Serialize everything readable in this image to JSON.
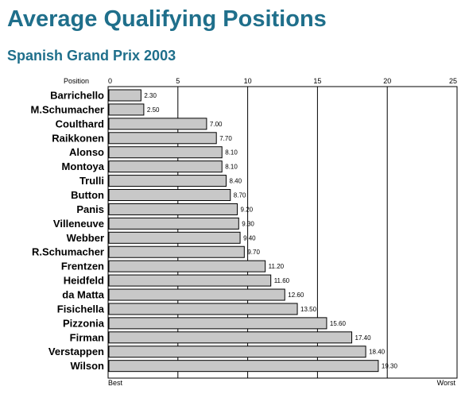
{
  "chart_data": {
    "type": "bar",
    "orientation": "horizontal",
    "title": "Average Qualifying Positions",
    "subtitle": "Spanish Grand Prix 2003",
    "axis_label": "Position",
    "axis_min_label": "Best",
    "axis_max_label": "Worst",
    "xlim": [
      0,
      25
    ],
    "ticks": [
      0,
      5,
      10,
      15,
      20,
      25
    ],
    "grid": true,
    "categories": [
      "Barrichello",
      "M.Schumacher",
      "Coulthard",
      "Raikkonen",
      "Alonso",
      "Montoya",
      "Trulli",
      "Button",
      "Panis",
      "Villeneuve",
      "Webber",
      "R.Schumacher",
      "Frentzen",
      "Heidfeld",
      "da Matta",
      "Fisichella",
      "Pizzonia",
      "Firman",
      "Verstappen",
      "Wilson"
    ],
    "values": [
      2.3,
      2.5,
      7.0,
      7.7,
      8.1,
      8.1,
      8.4,
      8.7,
      9.2,
      9.3,
      9.4,
      9.7,
      11.2,
      11.6,
      12.6,
      13.5,
      15.6,
      17.4,
      18.4,
      19.3
    ],
    "value_labels": [
      "2.30",
      "2.50",
      "7.00",
      "7.70",
      "8.10",
      "8.10",
      "8.40",
      "8.70",
      "9.20",
      "9.30",
      "9.40",
      "9.70",
      "11.20",
      "11.60",
      "12.60",
      "13.50",
      "15.60",
      "17.40",
      "18.40",
      "19.30"
    ],
    "colors": {
      "title": "#1f6f8b",
      "bar": "#c8c8c8",
      "bar_outline": "#000000"
    }
  }
}
